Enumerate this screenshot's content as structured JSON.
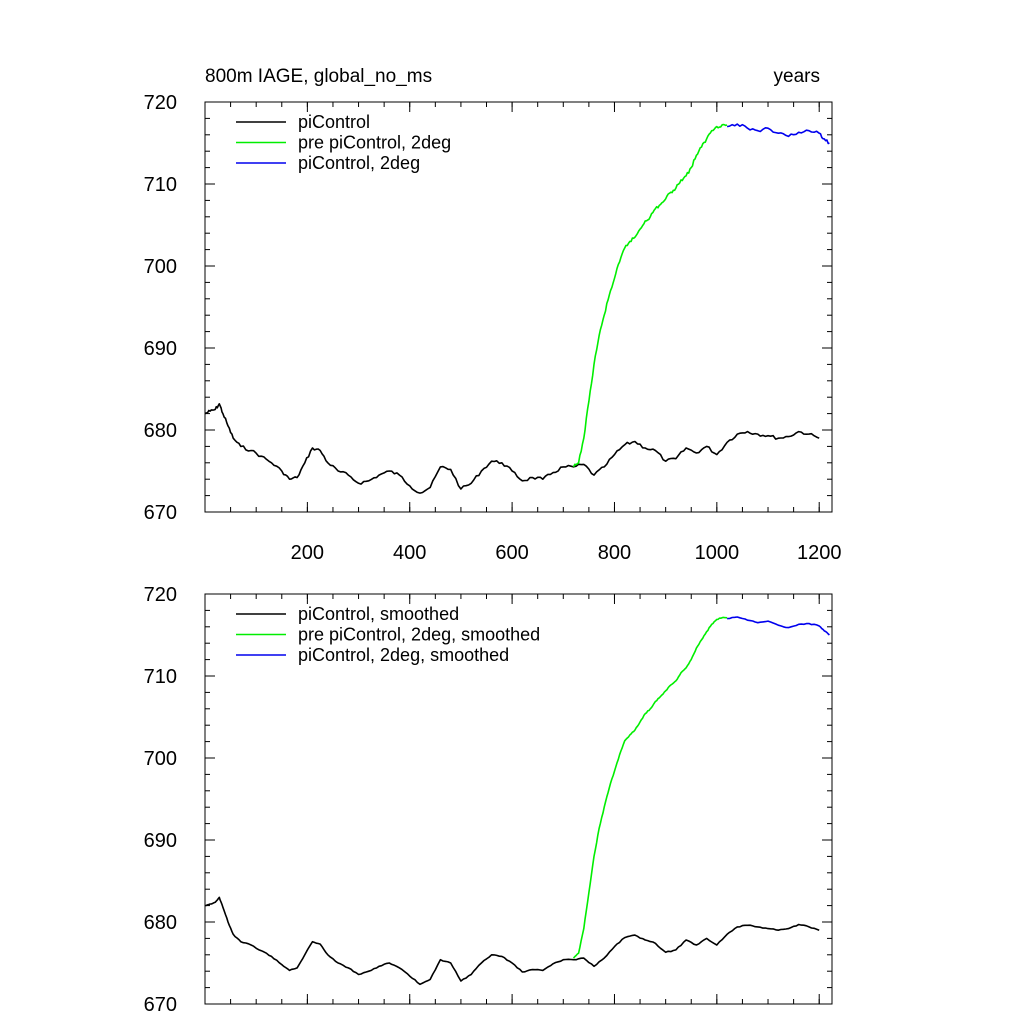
{
  "header": {
    "title": "800m IAGE, global_no_ms",
    "units": "years"
  },
  "colors": {
    "piControl": "#000000",
    "pre_piControl_2deg": "#00ee00",
    "piControl_2deg": "#0000ee",
    "axis": "#000000"
  },
  "chart_data": [
    {
      "type": "line",
      "title": "800m IAGE, global_no_ms",
      "units_label": "years",
      "xlim": [
        0,
        1225
      ],
      "ylim": [
        670,
        720
      ],
      "xticks": [
        200,
        400,
        600,
        800,
        1000,
        1200
      ],
      "xtick_labels": [
        "200",
        "400",
        "600",
        "800",
        "1000",
        "1200"
      ],
      "yticks": [
        670,
        680,
        690,
        700,
        710,
        720
      ],
      "ytick_labels": [
        "670",
        "680",
        "690",
        "700",
        "710",
        "720"
      ],
      "legend": [
        "piControl",
        "pre piControl, 2deg",
        "piControl, 2deg"
      ],
      "series": [
        {
          "name": "piControl",
          "color": "#000000",
          "x": [
            0,
            10,
            20,
            28,
            35,
            45,
            55,
            70,
            90,
            110,
            130,
            150,
            165,
            180,
            195,
            210,
            225,
            240,
            260,
            280,
            300,
            320,
            340,
            360,
            380,
            400,
            420,
            440,
            460,
            480,
            500,
            520,
            540,
            560,
            580,
            600,
            620,
            640,
            660,
            680,
            700,
            720,
            740,
            760,
            780,
            800,
            820,
            840,
            860,
            880,
            900,
            920,
            940,
            960,
            980,
            1000,
            1020,
            1040,
            1060,
            1080,
            1100,
            1120,
            1140,
            1160,
            1180,
            1200
          ],
          "y": [
            682.0,
            682.3,
            682.5,
            683.2,
            682.0,
            680.5,
            679.0,
            678.0,
            677.5,
            676.8,
            676.0,
            675.0,
            674.0,
            674.2,
            676.0,
            677.8,
            677.5,
            676.0,
            675.0,
            674.5,
            673.5,
            673.8,
            674.5,
            675.0,
            674.5,
            673.2,
            672.3,
            673.0,
            675.5,
            675.2,
            672.8,
            673.5,
            675.0,
            676.2,
            676.0,
            675.0,
            673.8,
            674.2,
            674.0,
            674.8,
            675.5,
            675.5,
            675.8,
            674.5,
            675.5,
            677.0,
            678.2,
            678.6,
            677.8,
            677.5,
            676.2,
            676.5,
            677.8,
            677.2,
            678.0,
            677.0,
            678.5,
            679.5,
            679.8,
            679.5,
            679.3,
            679.0,
            679.2,
            679.8,
            679.5,
            679.0
          ]
        },
        {
          "name": "pre piControl, 2deg",
          "color": "#00ee00",
          "x": [
            720,
            730,
            740,
            750,
            760,
            770,
            780,
            790,
            800,
            810,
            820,
            830,
            840,
            850,
            860,
            870,
            880,
            890,
            900,
            910,
            920,
            930,
            940,
            950,
            960,
            970,
            980,
            990,
            1000,
            1010,
            1020
          ],
          "y": [
            675.5,
            676.0,
            679.0,
            683.5,
            688.0,
            691.5,
            694.0,
            696.5,
            698.5,
            700.5,
            702.2,
            703.0,
            703.5,
            704.5,
            705.5,
            706.0,
            707.0,
            707.5,
            708.2,
            709.0,
            709.5,
            710.5,
            711.0,
            712.0,
            713.5,
            714.5,
            715.5,
            716.5,
            717.0,
            717.2,
            717.2
          ]
        },
        {
          "name": "piControl, 2deg",
          "color": "#0000ee",
          "x": [
            1020,
            1040,
            1060,
            1080,
            1100,
            1120,
            1140,
            1160,
            1180,
            1200,
            1210,
            1220
          ],
          "y": [
            717.0,
            717.3,
            716.8,
            716.5,
            716.8,
            716.2,
            715.8,
            716.3,
            716.5,
            716.2,
            715.5,
            715.0
          ]
        }
      ]
    },
    {
      "type": "line",
      "title": "",
      "xlim": [
        0,
        1225
      ],
      "ylim": [
        670,
        720
      ],
      "xticks": [
        200,
        400,
        600,
        800,
        1000,
        1200
      ],
      "xtick_labels": [],
      "yticks": [
        670,
        680,
        690,
        700,
        710,
        720
      ],
      "ytick_labels": [
        "670",
        "680",
        "690",
        "700",
        "710",
        "720"
      ],
      "legend": [
        "piControl, smoothed",
        "pre piControl, 2deg, smoothed",
        "piControl, 2deg, smoothed"
      ],
      "series": [
        {
          "name": "piControl, smoothed",
          "color": "#000000",
          "x": [
            0,
            10,
            20,
            28,
            35,
            45,
            55,
            70,
            90,
            110,
            130,
            150,
            165,
            180,
            195,
            210,
            225,
            240,
            260,
            280,
            300,
            320,
            340,
            360,
            380,
            400,
            420,
            440,
            460,
            480,
            500,
            520,
            540,
            560,
            580,
            600,
            620,
            640,
            660,
            680,
            700,
            720,
            740,
            760,
            780,
            800,
            820,
            840,
            860,
            880,
            900,
            920,
            940,
            960,
            980,
            1000,
            1020,
            1040,
            1060,
            1080,
            1100,
            1120,
            1140,
            1160,
            1180,
            1200
          ],
          "y": [
            682.0,
            682.2,
            682.4,
            683.0,
            681.8,
            680.0,
            678.5,
            677.6,
            677.2,
            676.5,
            675.8,
            674.8,
            674.1,
            674.4,
            676.0,
            677.6,
            677.3,
            676.0,
            675.0,
            674.4,
            673.6,
            674.0,
            674.6,
            675.0,
            674.4,
            673.4,
            672.4,
            673.0,
            675.4,
            675.0,
            672.8,
            673.6,
            675.0,
            676.0,
            675.8,
            675.0,
            673.9,
            674.2,
            674.1,
            674.9,
            675.4,
            675.4,
            675.6,
            674.6,
            675.6,
            677.0,
            678.1,
            678.4,
            677.8,
            677.4,
            676.3,
            676.6,
            677.8,
            677.2,
            678.0,
            677.2,
            678.5,
            679.4,
            679.6,
            679.4,
            679.2,
            679.0,
            679.2,
            679.7,
            679.4,
            679.0
          ]
        },
        {
          "name": "pre piControl, 2deg, smoothed",
          "color": "#00ee00",
          "x": [
            720,
            730,
            740,
            750,
            760,
            770,
            780,
            790,
            800,
            810,
            820,
            830,
            840,
            850,
            860,
            870,
            880,
            890,
            900,
            910,
            920,
            930,
            940,
            950,
            960,
            970,
            980,
            990,
            1000,
            1010,
            1020
          ],
          "y": [
            675.6,
            676.2,
            679.2,
            683.6,
            688.0,
            691.4,
            694.0,
            696.4,
            698.4,
            700.4,
            702.1,
            702.8,
            703.4,
            704.4,
            705.4,
            706.0,
            706.9,
            707.5,
            708.2,
            708.9,
            709.4,
            710.4,
            711.0,
            712.0,
            713.4,
            714.4,
            715.4,
            716.3,
            716.9,
            717.1,
            717.1
          ]
        },
        {
          "name": "piControl, 2deg, smoothed",
          "color": "#0000ee",
          "x": [
            1020,
            1040,
            1060,
            1080,
            1100,
            1120,
            1140,
            1160,
            1180,
            1200,
            1210,
            1220
          ],
          "y": [
            717.0,
            717.2,
            716.8,
            716.5,
            716.7,
            716.2,
            715.9,
            716.3,
            716.4,
            716.1,
            715.5,
            715.0
          ]
        }
      ]
    }
  ]
}
